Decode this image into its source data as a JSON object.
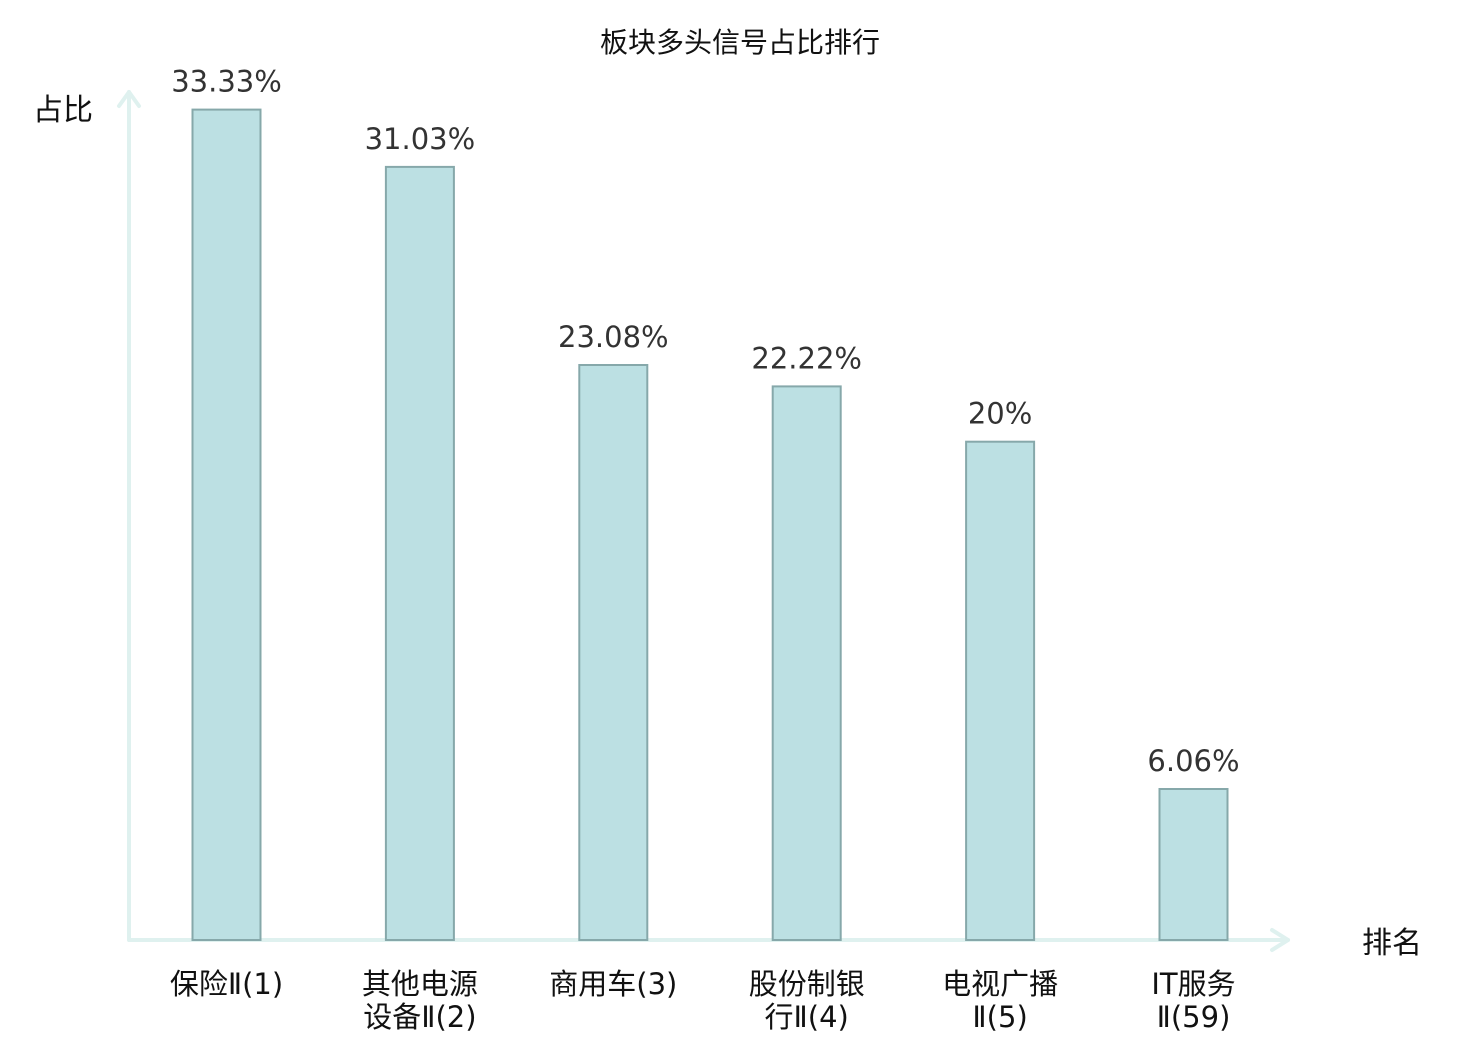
{
  "chart_data": {
    "type": "bar",
    "title": "板块多头信号占比排行",
    "xlabel": "排名",
    "ylabel": "占比",
    "categories": [
      [
        "保险Ⅱ(1)"
      ],
      [
        "其他电源",
        "设备Ⅱ(2)"
      ],
      [
        "商用车(3)"
      ],
      [
        "股份制银",
        "行Ⅱ(4)"
      ],
      [
        "电视广播",
        "Ⅱ(5)"
      ],
      [
        "IT服务",
        "Ⅱ(59)"
      ]
    ],
    "values": [
      33.33,
      31.03,
      23.08,
      22.22,
      20,
      6.06
    ],
    "value_labels": [
      "33.33%",
      "31.03%",
      "23.08%",
      "22.22%",
      "20%",
      "6.06%"
    ],
    "highlight_index": 5,
    "ylim": [
      0,
      35
    ],
    "grid": false,
    "colors": {
      "bar_fill": "#bce0e3",
      "bar_stroke": "#86a8aa",
      "axis": "#dff1ef",
      "highlight_text": "#e8201f",
      "text": "#111111",
      "value_text": "#333333"
    }
  }
}
